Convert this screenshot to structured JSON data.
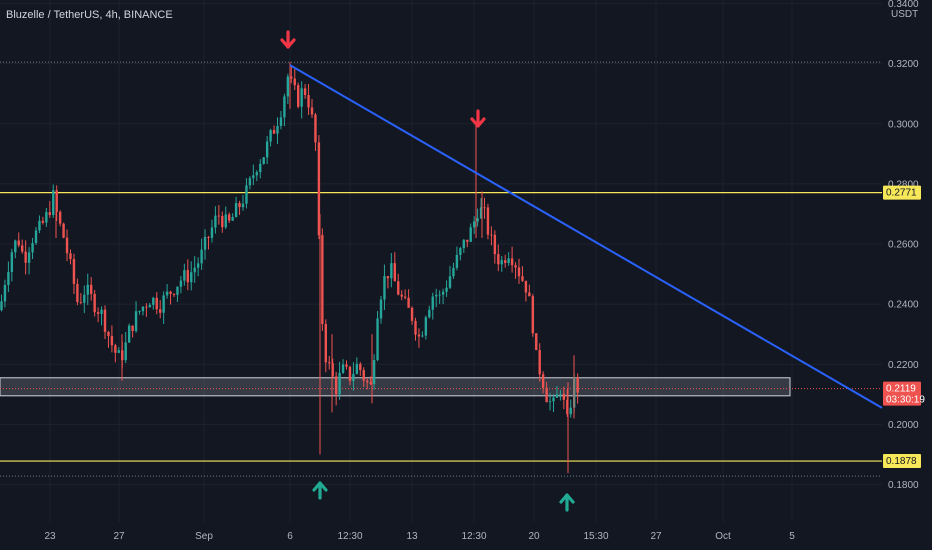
{
  "header": {
    "title": "Bluzelle / TetherUS, 4h, BINANCE",
    "currency": "USDT"
  },
  "colors": {
    "background": "#131722",
    "grid": "#1e222d",
    "up": "#26a69a",
    "down": "#ef5350",
    "trendline": "#2962ff",
    "level_line": "#f7e85a",
    "arrow_down": "#f23645",
    "arrow_up": "#22ab94"
  },
  "chart_data": {
    "type": "candlestick",
    "interval": "4h",
    "ylim": [
      0.178,
      0.3245
    ],
    "y_ticks": [
      "0.3400",
      "0.3200",
      "0.3000",
      "0.2800",
      "0.2600",
      "0.2400",
      "0.2200",
      "0.2000",
      "0.1800"
    ],
    "x_ticks": [
      "23",
      "27",
      "Sep",
      "6",
      "12:30",
      "13",
      "12:30",
      "20",
      "15:30",
      "27",
      "Oct",
      "5"
    ],
    "price_labels": {
      "level_high": "0.2771",
      "last_price": "0.2119",
      "countdown": "03:30:19",
      "level_low": "0.1878"
    },
    "levels": [
      0.2771,
      0.1878
    ],
    "dotted_levels": [
      0.3205,
      0.2119,
      0.1828
    ],
    "support_zone": [
      0.2095,
      0.2155
    ],
    "trendline": {
      "from": {
        "x": "Sep 6",
        "y": 0.3195
      },
      "to": {
        "x": "Oct 7",
        "y": 0.2055
      }
    },
    "annotations": [
      {
        "type": "arrow-down",
        "near": "Sep 6 high"
      },
      {
        "type": "arrow-down",
        "near": "Sep 14 high"
      },
      {
        "type": "arrow-up",
        "near": "Sep 8 low"
      },
      {
        "type": "arrow-up",
        "near": "Sep 22 low"
      }
    ],
    "path": [
      [
        0,
        0.238
      ],
      [
        6,
        0.25
      ],
      [
        12,
        0.258
      ],
      [
        18,
        0.262
      ],
      [
        24,
        0.255
      ],
      [
        32,
        0.262
      ],
      [
        40,
        0.265
      ],
      [
        48,
        0.27
      ],
      [
        53,
        0.276
      ],
      [
        58,
        0.268
      ],
      [
        64,
        0.262
      ],
      [
        72,
        0.25
      ],
      [
        78,
        0.24
      ],
      [
        85,
        0.245
      ],
      [
        95,
        0.24
      ],
      [
        103,
        0.236
      ],
      [
        110,
        0.228
      ],
      [
        118,
        0.222
      ],
      [
        124,
        0.224
      ],
      [
        130,
        0.232
      ],
      [
        140,
        0.238
      ],
      [
        150,
        0.242
      ],
      [
        160,
        0.24
      ],
      [
        170,
        0.244
      ],
      [
        180,
        0.248
      ],
      [
        190,
        0.25
      ],
      [
        200,
        0.255
      ],
      [
        208,
        0.262
      ],
      [
        218,
        0.27
      ],
      [
        228,
        0.266
      ],
      [
        238,
        0.272
      ],
      [
        248,
        0.278
      ],
      [
        256,
        0.286
      ],
      [
        264,
        0.29
      ],
      [
        270,
        0.295
      ],
      [
        276,
        0.3
      ],
      [
        282,
        0.306
      ],
      [
        288,
        0.316
      ],
      [
        292,
        0.312
      ],
      [
        298,
        0.308
      ],
      [
        304,
        0.312
      ],
      [
        310,
        0.306
      ],
      [
        316,
        0.292
      ],
      [
        318,
        0.268
      ],
      [
        321,
        0.242
      ],
      [
        324,
        0.225
      ],
      [
        330,
        0.218
      ],
      [
        336,
        0.212
      ],
      [
        342,
        0.218
      ],
      [
        350,
        0.216
      ],
      [
        358,
        0.22
      ],
      [
        366,
        0.214
      ],
      [
        372,
        0.212
      ],
      [
        374,
        0.224
      ],
      [
        378,
        0.24
      ],
      [
        384,
        0.248
      ],
      [
        390,
        0.252
      ],
      [
        396,
        0.246
      ],
      [
        404,
        0.24
      ],
      [
        412,
        0.236
      ],
      [
        420,
        0.228
      ],
      [
        426,
        0.238
      ],
      [
        434,
        0.244
      ],
      [
        440,
        0.242
      ],
      [
        448,
        0.248
      ],
      [
        456,
        0.254
      ],
      [
        464,
        0.26
      ],
      [
        472,
        0.265
      ],
      [
        478,
        0.272
      ],
      [
        484,
        0.27
      ],
      [
        490,
        0.262
      ],
      [
        496,
        0.256
      ],
      [
        502,
        0.254
      ],
      [
        508,
        0.258
      ],
      [
        514,
        0.255
      ],
      [
        520,
        0.25
      ],
      [
        526,
        0.246
      ],
      [
        532,
        0.236
      ],
      [
        536,
        0.222
      ],
      [
        542,
        0.216
      ],
      [
        548,
        0.208
      ],
      [
        554,
        0.206
      ],
      [
        558,
        0.21
      ],
      [
        562,
        0.214
      ],
      [
        566,
        0.198
      ],
      [
        570,
        0.206
      ],
      [
        574,
        0.214
      ],
      [
        578,
        0.2119
      ]
    ]
  }
}
